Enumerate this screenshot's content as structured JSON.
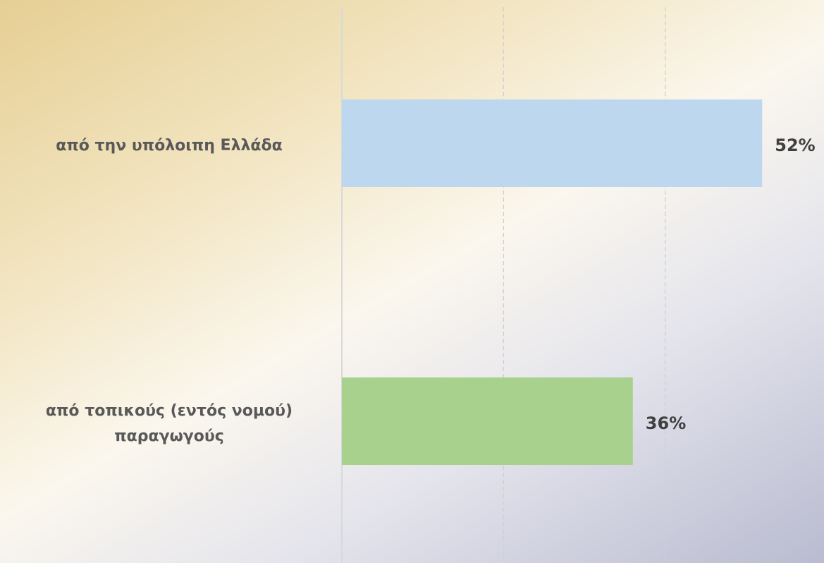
{
  "chart_data": {
    "type": "bar",
    "orientation": "horizontal",
    "categories": [
      "από την υπόλοιπη Ελλάδα",
      "από τοπικούς (εντός νομού) παραγωγούς"
    ],
    "values": [
      52,
      36
    ],
    "value_labels": [
      "52%",
      "36%"
    ],
    "colors": [
      "#bdd7ee",
      "#a9d18e"
    ],
    "xlim": [
      0,
      60
    ],
    "xticks": [
      0,
      20,
      40
    ],
    "grid": true
  }
}
